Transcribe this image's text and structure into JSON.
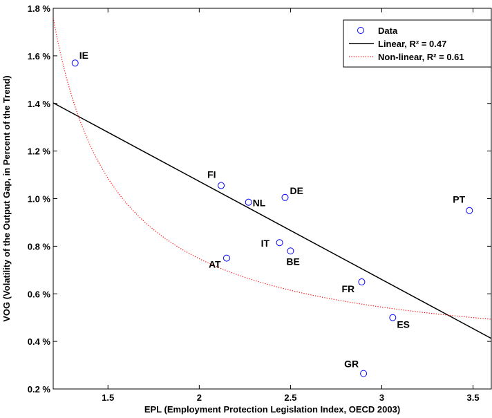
{
  "chart_data": {
    "type": "scatter",
    "xlabel": "EPL (Employment Protection Legislation Index, OECD 2003)",
    "ylabel": "VOG (Volatility of the Output Gap, in Percent of the Trend)",
    "xlim": [
      1.2,
      3.6
    ],
    "ylim": [
      0.2,
      1.8
    ],
    "x_ticks": [
      1.5,
      2,
      2.5,
      3,
      3.5
    ],
    "x_tick_labels": [
      "1.5",
      "2",
      "2.5",
      "3",
      "3.5"
    ],
    "y_ticks": [
      0.2,
      0.4,
      0.6,
      0.8,
      1.0,
      1.2,
      1.4,
      1.6,
      1.8
    ],
    "y_tick_labels": [
      "0.2 %",
      "0.4 %",
      "0.6 %",
      "0.8 %",
      "1.0 %",
      "1.2 %",
      "1.4 %",
      "1.6 %",
      "1.8 %"
    ],
    "grid": false,
    "legend_position": "top-right",
    "colors": {
      "data_marker": "#0000ff",
      "linear": "#000000",
      "nonlinear": "#ff0000"
    },
    "series": [
      {
        "name": "Data",
        "kind": "markers",
        "points": [
          {
            "label": "IE",
            "x": 1.32,
            "y": 1.57
          },
          {
            "label": "FI",
            "x": 2.12,
            "y": 1.055
          },
          {
            "label": "NL",
            "x": 2.27,
            "y": 0.985
          },
          {
            "label": "DE",
            "x": 2.47,
            "y": 1.005
          },
          {
            "label": "IT",
            "x": 2.44,
            "y": 0.815
          },
          {
            "label": "BE",
            "x": 2.5,
            "y": 0.78
          },
          {
            "label": "AT",
            "x": 2.15,
            "y": 0.75
          },
          {
            "label": "FR",
            "x": 2.89,
            "y": 0.65
          },
          {
            "label": "ES",
            "x": 3.06,
            "y": 0.5
          },
          {
            "label": "GR",
            "x": 2.9,
            "y": 0.265
          },
          {
            "label": "PT",
            "x": 3.48,
            "y": 0.95
          }
        ]
      },
      {
        "name": "Linear, R² = 0.47",
        "kind": "line",
        "slope": -0.4125,
        "intercept": 1.8975
      },
      {
        "name": "Non-linear, R² = 0.61",
        "kind": "dotted-curve",
        "formula": "a + b / (x - c)",
        "a": 0.311,
        "b": 0.5,
        "c": 0.855
      }
    ]
  }
}
